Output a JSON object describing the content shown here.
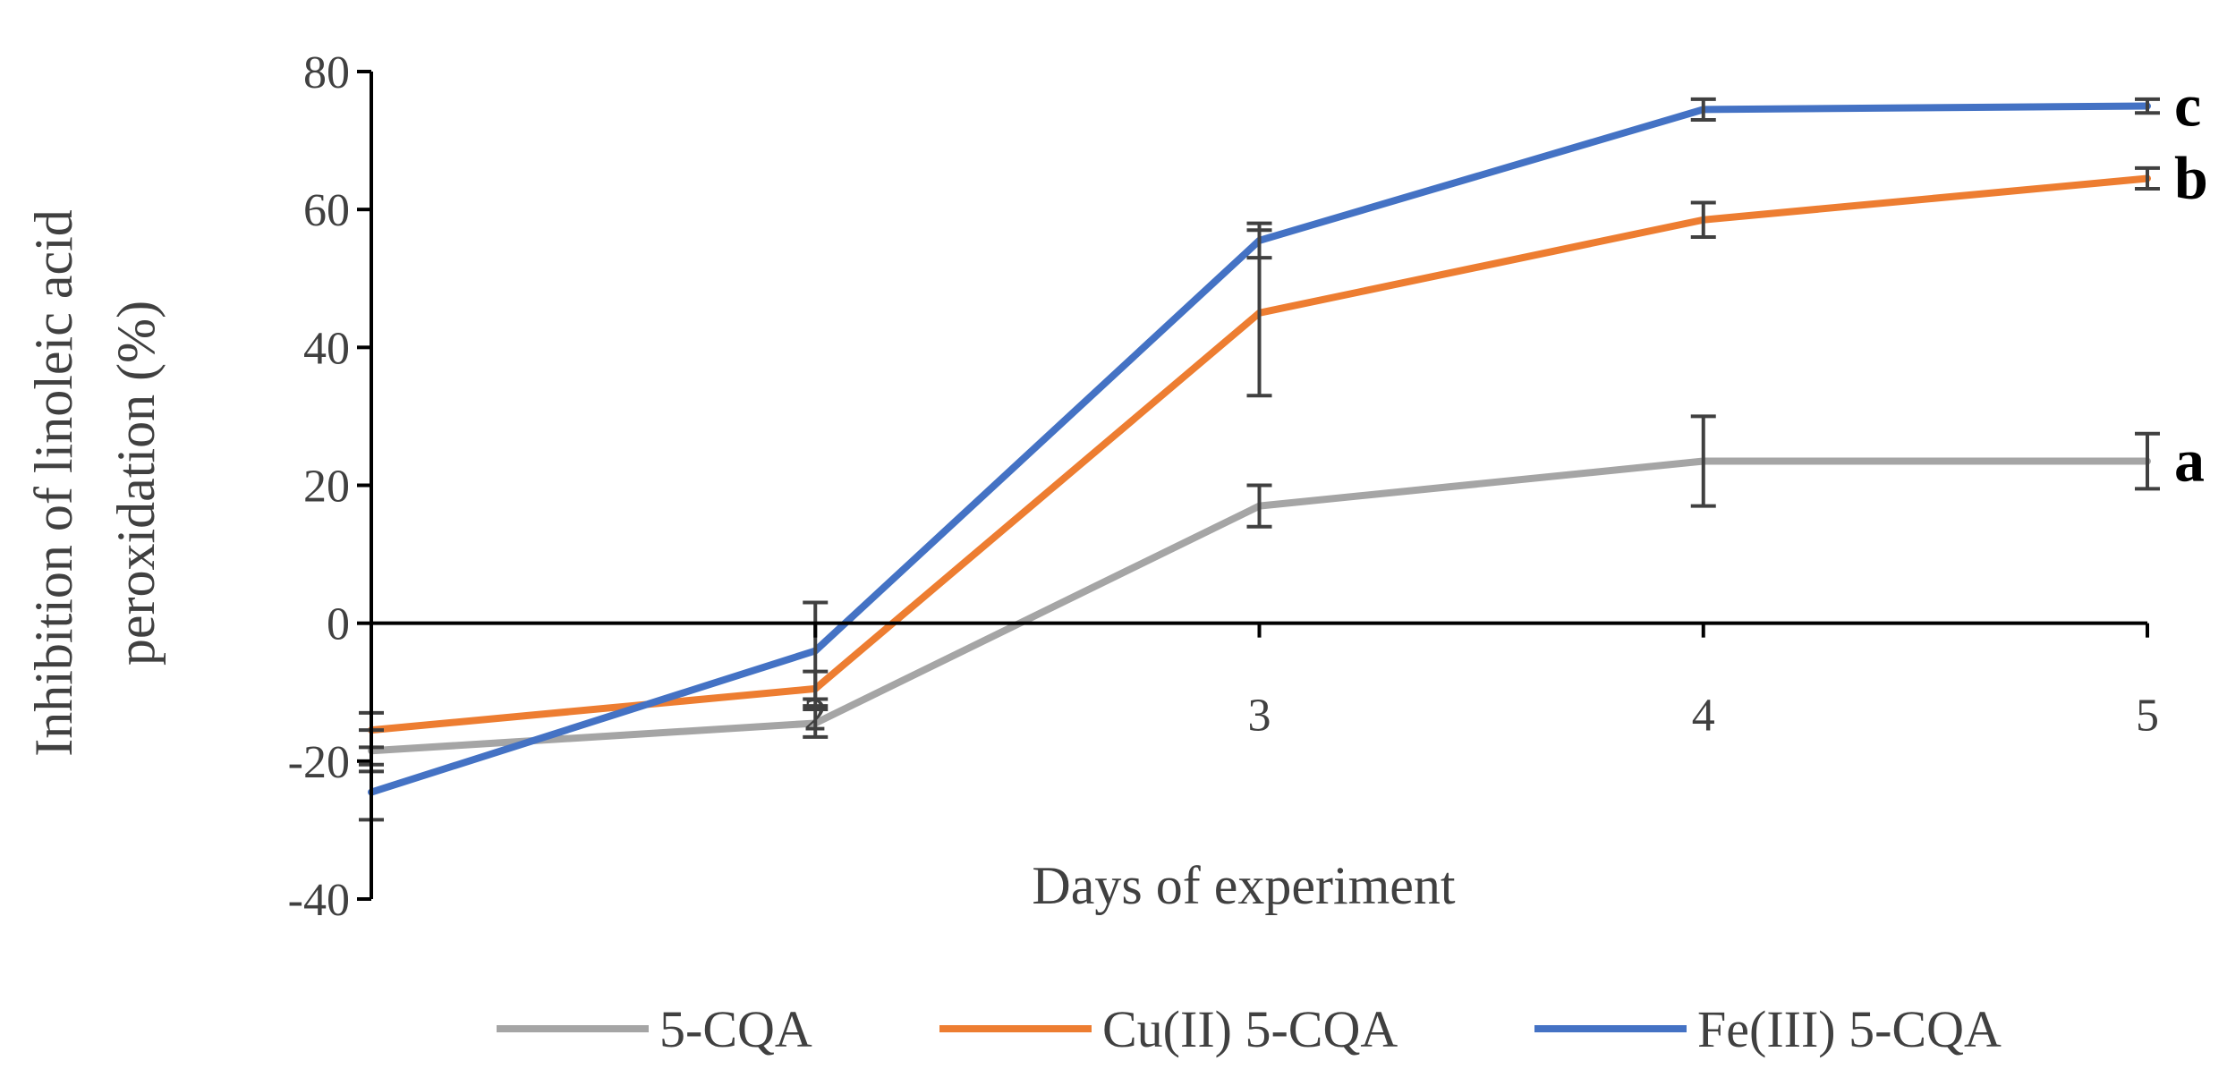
{
  "chart_data": {
    "type": "line",
    "xlabel": "Days of experiment",
    "ylabel_line1": "Inhibition of linoleic acid",
    "ylabel_line2": "peroxidation (%)",
    "x": [
      1,
      2,
      3,
      4,
      5
    ],
    "x_tick_labels": [
      "",
      "2",
      "3",
      "4",
      "5"
    ],
    "ylim": [
      -40,
      80
    ],
    "y_ticks": [
      -40,
      -20,
      0,
      20,
      40,
      60,
      80
    ],
    "y_tick_labels": [
      "-40",
      "-20",
      "0",
      "20",
      "40",
      "60",
      "80"
    ],
    "grid": false,
    "legend_position": "bottom",
    "series": [
      {
        "name": "5-CQA",
        "color": "#a5a5a5",
        "values": [
          -18.5,
          -14.5,
          17,
          23.5,
          23.5
        ],
        "errors": [
          3,
          2,
          3,
          6.5,
          4
        ],
        "label": "a"
      },
      {
        "name": "Cu(II) 5-CQA",
        "color": "#ed7d31",
        "values": [
          -15.5,
          -9.5,
          45,
          58.5,
          64.5
        ],
        "errors": [
          2.5,
          2.5,
          12,
          2.5,
          1.5
        ],
        "label": "b"
      },
      {
        "name": "Fe(III) 5-CQA",
        "color": "#4472c4",
        "values": [
          -24.5,
          -4,
          55.5,
          74.5,
          75
        ],
        "errors": [
          4,
          7,
          2.5,
          1.5,
          1
        ],
        "label": "c"
      }
    ]
  }
}
